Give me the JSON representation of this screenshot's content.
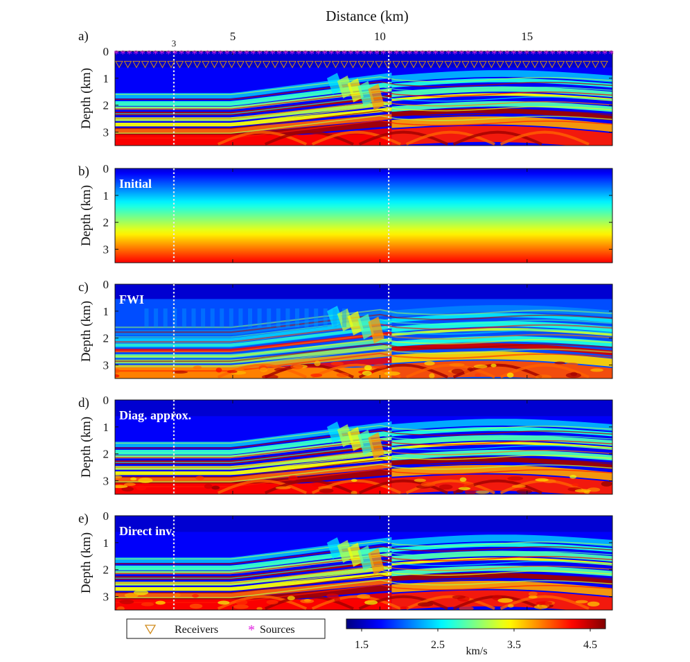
{
  "chart_data": {
    "type": "heatmap",
    "title": "Distance (km)",
    "xlabel": "Distance (km)",
    "ylabel": "Depth (km)",
    "xlim": [
      1,
      17.9
    ],
    "ylim": [
      0,
      3.5
    ],
    "x_ticks": [
      "5",
      "10",
      "15"
    ],
    "x_tick_values": [
      5,
      10,
      15
    ],
    "y_ticks": [
      "0",
      "1",
      "2",
      "3"
    ],
    "y_tick_values": [
      0,
      1,
      2,
      3
    ],
    "vertical_marker_label": "3",
    "vertical_markers_km": [
      3,
      10.3
    ],
    "panels": [
      {
        "letter": "a)",
        "label": "",
        "kind": "true"
      },
      {
        "letter": "b)",
        "label": "Initial",
        "kind": "initial"
      },
      {
        "letter": "c)",
        "label": "FWI",
        "kind": "fwi"
      },
      {
        "letter": "d)",
        "label": "Diag. approx.",
        "kind": "diag"
      },
      {
        "letter": "e)",
        "label": "Direct inv.",
        "kind": "direct"
      }
    ],
    "colorbar": {
      "label": "km/s",
      "range": [
        1.3,
        4.7
      ],
      "ticks": [
        "1.5",
        "2.5",
        "3.5",
        "4.5"
      ],
      "tick_values": [
        1.5,
        2.5,
        3.5,
        4.5
      ],
      "colormap": "jet"
    },
    "legend": [
      {
        "symbol": "triangle-down",
        "label": "Receivers",
        "color": "#d08a1a"
      },
      {
        "symbol": "asterisk",
        "label": "Sources",
        "color": "#e020e0"
      }
    ],
    "acquisition": {
      "sources_depth_km": 0.02,
      "receivers_depth_km": 0.5
    }
  }
}
